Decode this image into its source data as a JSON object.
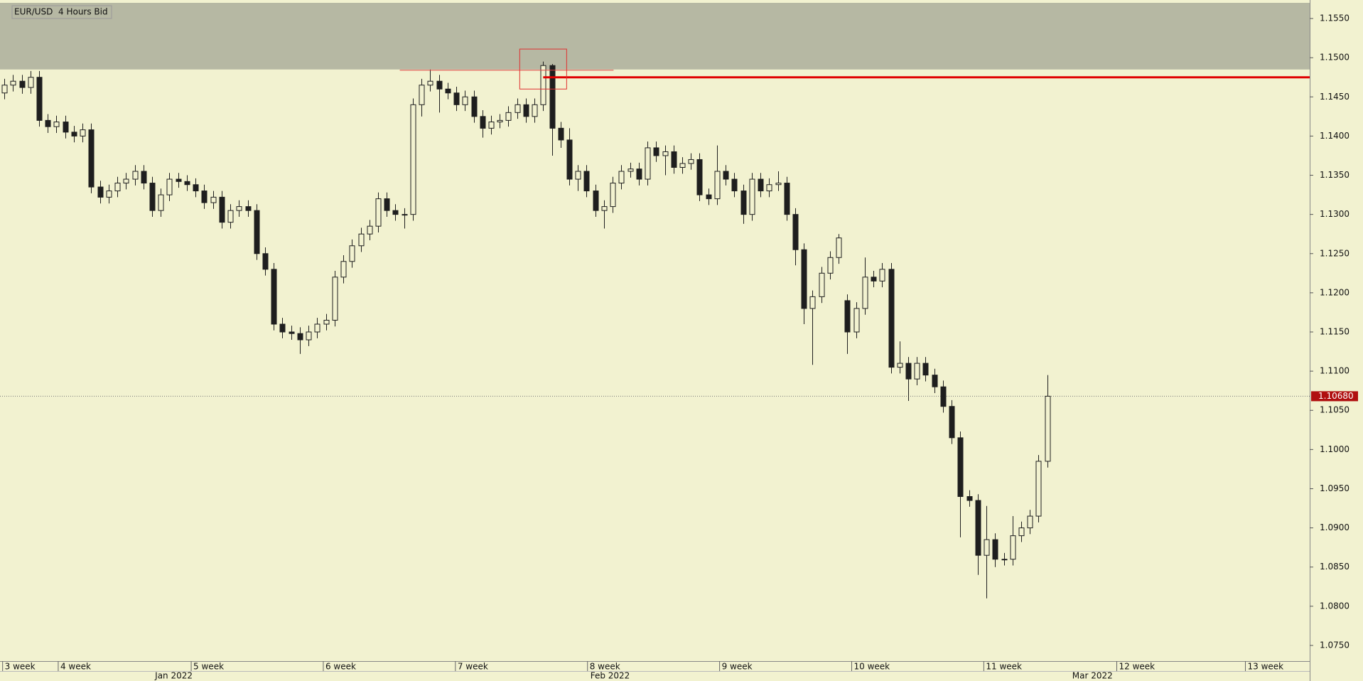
{
  "chart_data": {
    "type": "candlestick",
    "title": "EUR/USD  4 Hours Bid",
    "open": [
      1.1455,
      1.1465,
      1.147,
      1.1462,
      1.1475,
      1.142,
      1.1412,
      1.1418,
      1.1405,
      1.14,
      1.1408,
      1.1335,
      1.1322,
      1.133,
      1.134,
      1.1345,
      1.1355,
      1.134,
      1.1305,
      1.1325,
      1.1345,
      1.1342,
      1.1338,
      1.133,
      1.1315,
      1.1322,
      1.129,
      1.1305,
      1.131,
      1.1305,
      1.125,
      1.123,
      1.116,
      1.115,
      1.1148,
      1.114,
      1.115,
      1.116,
      1.1165,
      1.122,
      1.124,
      1.126,
      1.1275,
      1.1285,
      1.132,
      1.1305,
      1.13,
      1.13,
      1.144,
      1.1465,
      1.147,
      1.146,
      1.1455,
      1.144,
      1.145,
      1.1425,
      1.141,
      1.1418,
      1.142,
      1.143,
      1.144,
      1.1425,
      1.144,
      1.149,
      1.141,
      1.1395,
      1.1345,
      1.1355,
      1.133,
      1.1305,
      1.131,
      1.134,
      1.1355,
      1.1358,
      1.1345,
      1.1385,
      1.1375,
      1.138,
      1.136,
      1.1365,
      1.137,
      1.1325,
      1.132,
      1.1355,
      1.1345,
      1.133,
      1.13,
      1.1345,
      1.133,
      1.1338,
      1.134,
      1.13,
      1.1255,
      1.118,
      1.1195,
      1.1225,
      1.1245,
      1.119,
      1.115,
      1.118,
      1.122,
      1.1215,
      1.123,
      1.1105,
      1.111,
      1.109,
      1.111,
      1.1095,
      1.108,
      1.1055,
      1.1015,
      1.094,
      1.0935,
      1.0865,
      1.0885,
      1.086,
      1.086,
      1.089,
      1.09,
      1.0915,
      1.0985
    ],
    "high": [
      1.1473,
      1.1478,
      1.1478,
      1.1483,
      1.1483,
      1.1428,
      1.1426,
      1.1426,
      1.1413,
      1.1416,
      1.1416,
      1.1343,
      1.1338,
      1.1348,
      1.1353,
      1.1363,
      1.1363,
      1.1348,
      1.1333,
      1.1353,
      1.1353,
      1.135,
      1.1346,
      1.1338,
      1.133,
      1.133,
      1.1313,
      1.1318,
      1.1318,
      1.1313,
      1.1258,
      1.1238,
      1.1168,
      1.1158,
      1.1156,
      1.1158,
      1.1168,
      1.1173,
      1.1228,
      1.1248,
      1.1268,
      1.1283,
      1.1293,
      1.1328,
      1.1328,
      1.1313,
      1.1308,
      1.1448,
      1.1473,
      1.1485,
      1.1478,
      1.1468,
      1.1463,
      1.1458,
      1.1458,
      1.1433,
      1.1426,
      1.1428,
      1.1438,
      1.1448,
      1.1448,
      1.1448,
      1.1495,
      1.1492,
      1.1418,
      1.141,
      1.1363,
      1.1363,
      1.1338,
      1.1318,
      1.1348,
      1.1363,
      1.1366,
      1.1366,
      1.1393,
      1.1393,
      1.1388,
      1.1388,
      1.1373,
      1.1378,
      1.1378,
      1.1333,
      1.1388,
      1.1363,
      1.1353,
      1.1338,
      1.1353,
      1.1353,
      1.1346,
      1.1355,
      1.1348,
      1.1308,
      1.1263,
      1.1203,
      1.1233,
      1.1253,
      1.1275,
      1.1198,
      1.1188,
      1.1245,
      1.1228,
      1.1238,
      1.1238,
      1.1138,
      1.1118,
      1.1118,
      1.1118,
      1.1103,
      1.1088,
      1.1063,
      1.1023,
      1.0948,
      1.0943,
      1.0928,
      1.0893,
      1.0868,
      1.0915,
      1.0908,
      1.0923,
      1.0993,
      1.1095
    ],
    "low": [
      1.1447,
      1.1457,
      1.1454,
      1.1454,
      1.1412,
      1.1404,
      1.1404,
      1.1397,
      1.1392,
      1.1392,
      1.1327,
      1.1314,
      1.1314,
      1.1322,
      1.1332,
      1.1337,
      1.1332,
      1.1297,
      1.1297,
      1.1317,
      1.1334,
      1.133,
      1.1322,
      1.1307,
      1.1307,
      1.1282,
      1.1282,
      1.1297,
      1.1297,
      1.1242,
      1.1222,
      1.1152,
      1.1142,
      1.114,
      1.1122,
      1.1132,
      1.1142,
      1.1152,
      1.1157,
      1.1212,
      1.1232,
      1.1252,
      1.1267,
      1.1277,
      1.1297,
      1.1292,
      1.1282,
      1.1292,
      1.1425,
      1.1457,
      1.143,
      1.1447,
      1.1432,
      1.1432,
      1.1417,
      1.1398,
      1.1402,
      1.141,
      1.1412,
      1.1422,
      1.1417,
      1.1417,
      1.1432,
      1.1375,
      1.1385,
      1.1337,
      1.133,
      1.1322,
      1.1297,
      1.1282,
      1.1302,
      1.1332,
      1.1347,
      1.1337,
      1.1337,
      1.1367,
      1.135,
      1.1352,
      1.1352,
      1.1357,
      1.1317,
      1.1312,
      1.1312,
      1.1337,
      1.1322,
      1.1288,
      1.1292,
      1.1322,
      1.1322,
      1.133,
      1.1292,
      1.1235,
      1.116,
      1.1108,
      1.1187,
      1.1217,
      1.1237,
      1.1122,
      1.1142,
      1.1172,
      1.1207,
      1.1207,
      1.1097,
      1.1097,
      1.1062,
      1.1082,
      1.1087,
      1.1072,
      1.1047,
      1.1007,
      1.0888,
      1.0927,
      1.084,
      1.081,
      1.085,
      1.0852,
      1.0852,
      1.0882,
      1.0892,
      1.0907,
      1.0977
    ],
    "close": [
      1.1465,
      1.147,
      1.1462,
      1.1475,
      1.142,
      1.1412,
      1.1418,
      1.1405,
      1.14,
      1.1408,
      1.1335,
      1.1322,
      1.133,
      1.134,
      1.1345,
      1.1355,
      1.134,
      1.1305,
      1.1325,
      1.1345,
      1.1342,
      1.1338,
      1.133,
      1.1315,
      1.1322,
      1.129,
      1.1305,
      1.131,
      1.1305,
      1.125,
      1.123,
      1.116,
      1.115,
      1.1148,
      1.114,
      1.115,
      1.116,
      1.1165,
      1.122,
      1.124,
      1.126,
      1.1275,
      1.1285,
      1.132,
      1.1305,
      1.13,
      1.13,
      1.144,
      1.1465,
      1.147,
      1.146,
      1.1455,
      1.144,
      1.145,
      1.1425,
      1.141,
      1.1418,
      1.142,
      1.143,
      1.144,
      1.1425,
      1.144,
      1.149,
      1.141,
      1.1395,
      1.1345,
      1.1355,
      1.133,
      1.1305,
      1.131,
      1.134,
      1.1355,
      1.1358,
      1.1345,
      1.1385,
      1.1375,
      1.138,
      1.136,
      1.1365,
      1.137,
      1.1325,
      1.132,
      1.1355,
      1.1345,
      1.133,
      1.13,
      1.1345,
      1.133,
      1.1338,
      1.134,
      1.13,
      1.1255,
      1.118,
      1.1195,
      1.1225,
      1.1245,
      1.127,
      1.115,
      1.118,
      1.122,
      1.1215,
      1.123,
      1.1105,
      1.111,
      1.109,
      1.111,
      1.1095,
      1.108,
      1.1055,
      1.1015,
      1.094,
      1.0935,
      1.0865,
      1.0885,
      1.086,
      1.086,
      1.089,
      1.09,
      1.0915,
      1.0985,
      1.1068
    ],
    "up_color": "#f2f2d0",
    "down_color": "#1e1e1e",
    "background": "#f2f2d0",
    "xlim": [
      0,
      150.7
    ],
    "xticks": [
      {
        "value": 0.3,
        "label": "3 week"
      },
      {
        "value": 6.7,
        "label": "4 week"
      },
      {
        "value": 22.0,
        "label": "5 week"
      },
      {
        "value": 37.2,
        "label": "6 week"
      },
      {
        "value": 52.4,
        "label": "7 week"
      },
      {
        "value": 67.6,
        "label": "8 week"
      },
      {
        "value": 82.8,
        "label": "9 week"
      },
      {
        "value": 98.0,
        "label": "10 week"
      },
      {
        "value": 113.2,
        "label": "11 week"
      },
      {
        "value": 128.5,
        "label": "12 week"
      },
      {
        "value": 143.3,
        "label": "13 week"
      }
    ],
    "month_ticks": [
      {
        "value": 20.0,
        "label": "Jan 2022"
      },
      {
        "value": 70.2,
        "label": "Feb 2022"
      },
      {
        "value": 125.7,
        "label": "Mar 2022"
      }
    ],
    "ylim": [
      1.073,
      1.157
    ],
    "yticks": [
      {
        "value": 1.075,
        "label": "1.0750"
      },
      {
        "value": 1.08,
        "label": "1.0800"
      },
      {
        "value": 1.085,
        "label": "1.0850"
      },
      {
        "value": 1.09,
        "label": "1.0900"
      },
      {
        "value": 1.095,
        "label": "1.0950"
      },
      {
        "value": 1.1,
        "label": "1.1000"
      },
      {
        "value": 1.105,
        "label": "1.1050"
      },
      {
        "value": 1.11,
        "label": "1.1100"
      },
      {
        "value": 1.115,
        "label": "1.1150"
      },
      {
        "value": 1.12,
        "label": "1.1200"
      },
      {
        "value": 1.125,
        "label": "1.1250"
      },
      {
        "value": 1.13,
        "label": "1.1300"
      },
      {
        "value": 1.135,
        "label": "1.1350"
      },
      {
        "value": 1.14,
        "label": "1.1400"
      },
      {
        "value": 1.145,
        "label": "1.1450"
      },
      {
        "value": 1.15,
        "label": "1.1500"
      },
      {
        "value": 1.155,
        "label": "1.1550"
      }
    ],
    "zone": {
      "y": [
        1.1485,
        1.157
      ],
      "color": "#b6b8a3"
    },
    "levels": [
      {
        "value": 1.1475,
        "x": [
          62.5,
          150.7
        ],
        "color": "#e00000",
        "style": "thick"
      },
      {
        "value": 1.1484,
        "x": [
          46,
          70.6
        ],
        "color": "#e04040",
        "style": "thin"
      }
    ],
    "box": {
      "x": [
        59.8,
        65.2
      ],
      "y": [
        1.146,
        1.1511
      ],
      "color": "#e03030"
    },
    "last_price": {
      "value": 1.1068,
      "label": "1.10680",
      "color": "#b01010"
    }
  }
}
